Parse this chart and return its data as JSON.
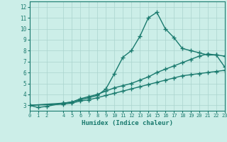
{
  "line1_x": [
    0,
    1,
    2,
    4,
    5,
    6,
    7,
    8,
    9,
    10,
    11,
    12,
    13,
    14,
    15,
    16,
    17,
    18,
    19,
    20,
    21,
    22,
    23
  ],
  "line1_y": [
    3.0,
    2.8,
    2.9,
    3.2,
    3.3,
    3.5,
    3.7,
    3.9,
    4.5,
    5.9,
    7.4,
    8.0,
    9.3,
    11.0,
    11.5,
    10.0,
    9.2,
    8.2,
    8.0,
    7.8,
    7.6,
    7.6,
    6.5
  ],
  "line2_x": [
    0,
    4,
    5,
    6,
    7,
    8,
    9,
    10,
    11,
    12,
    13,
    14,
    15,
    16,
    17,
    18,
    19,
    20,
    21,
    22,
    23
  ],
  "line2_y": [
    3.0,
    3.2,
    3.3,
    3.6,
    3.8,
    4.0,
    4.3,
    4.6,
    4.8,
    5.0,
    5.3,
    5.6,
    6.0,
    6.3,
    6.6,
    6.9,
    7.2,
    7.5,
    7.7,
    7.6,
    7.5
  ],
  "line3_x": [
    0,
    4,
    5,
    6,
    7,
    8,
    9,
    10,
    11,
    12,
    13,
    14,
    15,
    16,
    17,
    18,
    19,
    20,
    21,
    22,
    23
  ],
  "line3_y": [
    3.0,
    3.1,
    3.2,
    3.4,
    3.5,
    3.7,
    3.9,
    4.1,
    4.3,
    4.5,
    4.7,
    4.9,
    5.1,
    5.3,
    5.5,
    5.7,
    5.8,
    5.9,
    6.0,
    6.1,
    6.2
  ],
  "line_color": "#1a7a6e",
  "bg_color": "#cceee8",
  "grid_color": "#aad4ce",
  "xlabel": "Humidex (Indice chaleur)",
  "xlim": [
    0,
    23
  ],
  "ylim": [
    2.5,
    12.5
  ],
  "yticks": [
    3,
    4,
    5,
    6,
    7,
    8,
    9,
    10,
    11,
    12
  ],
  "xticks": [
    0,
    1,
    2,
    4,
    5,
    6,
    7,
    8,
    9,
    10,
    11,
    12,
    13,
    14,
    15,
    16,
    17,
    18,
    19,
    20,
    21,
    22,
    23
  ],
  "xtick_labels": [
    "0",
    "1",
    "2",
    "4",
    "5",
    "6",
    "7",
    "8",
    "9",
    "10",
    "11",
    "12",
    "13",
    "14",
    "15",
    "16",
    "17",
    "18",
    "19",
    "20",
    "21",
    "22",
    "23"
  ],
  "marker": "+",
  "markersize": 4,
  "markeredgewidth": 1.0,
  "linewidth": 1.0
}
